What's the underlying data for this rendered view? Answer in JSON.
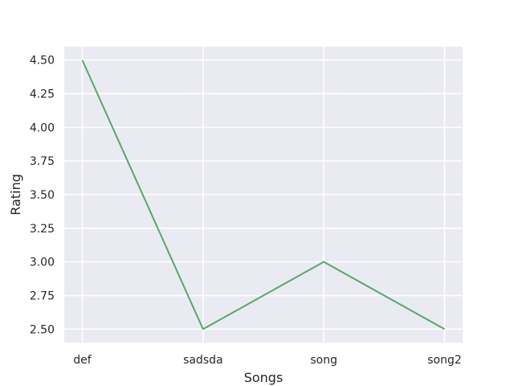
{
  "chart_data": {
    "type": "line",
    "categories": [
      "def",
      "sadsda",
      "song",
      "song2"
    ],
    "series": [
      {
        "values": [
          4.5,
          2.5,
          3.0,
          2.5
        ],
        "color": "#55a868"
      }
    ],
    "xlabel": "Songs",
    "ylabel": "Rating",
    "ylim": [
      2.4,
      4.6
    ],
    "yticks": [
      2.5,
      2.75,
      3.0,
      3.25,
      3.5,
      3.75,
      4.0,
      4.25,
      4.5
    ],
    "ytick_labels": [
      "2.50",
      "2.75",
      "3.00",
      "3.25",
      "3.50",
      "3.75",
      "4.00",
      "4.25",
      "4.50"
    ],
    "grid": true,
    "background_color": "#eaeaf2",
    "grid_color": "#ffffff"
  }
}
